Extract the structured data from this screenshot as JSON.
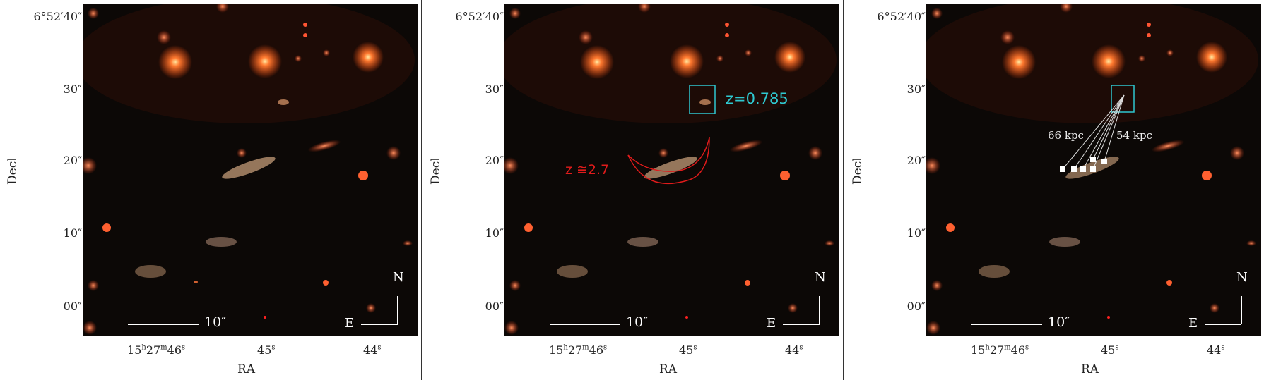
{
  "panels": [
    {
      "ylabel": "Decl",
      "xlabel": "RA",
      "y_ticks": [
        "6°52′40″",
        "30″",
        "20″",
        "10″",
        "00″"
      ],
      "x_ticks": [
        {
          "base": "15",
          "h": "h",
          "m": "27",
          "mm": "m",
          "s": "46",
          "ss": "s"
        },
        {
          "base": "45",
          "ss": "s"
        },
        {
          "base": "44",
          "ss": "s"
        }
      ],
      "scale_label": "10″",
      "compass": {
        "north": "N",
        "east": "E"
      }
    },
    {
      "ylabel": "Decl",
      "xlabel": "RA",
      "y_ticks": [
        "6°52′40″",
        "30″",
        "20″",
        "10″",
        "00″"
      ],
      "x_ticks": [
        {
          "base": "15",
          "h": "h",
          "m": "27",
          "mm": "m",
          "s": "46",
          "ss": "s"
        },
        {
          "base": "45",
          "ss": "s"
        },
        {
          "base": "44",
          "ss": "s"
        }
      ],
      "scale_label": "10″",
      "compass": {
        "north": "N",
        "east": "E"
      },
      "annotations": {
        "box_label": "z=0.785",
        "arc_label": "z ≅2.7",
        "box_color": "#2ec8d0",
        "arc_color": "#e01b1b"
      }
    },
    {
      "ylabel": "Decl",
      "xlabel": "RA",
      "y_ticks": [
        "6°52′40″",
        "30″",
        "20″",
        "10″",
        "00″"
      ],
      "x_ticks": [
        {
          "base": "15",
          "h": "h",
          "m": "27",
          "mm": "m",
          "s": "46",
          "ss": "s"
        },
        {
          "base": "45",
          "ss": "s"
        },
        {
          "base": "44",
          "ss": "s"
        }
      ],
      "scale_label": "10″",
      "compass": {
        "north": "N",
        "east": "E"
      },
      "annotations": {
        "left_distance": "66 kpc",
        "right_distance": "54 kpc",
        "box_color": "#2ec8d0"
      }
    }
  ]
}
